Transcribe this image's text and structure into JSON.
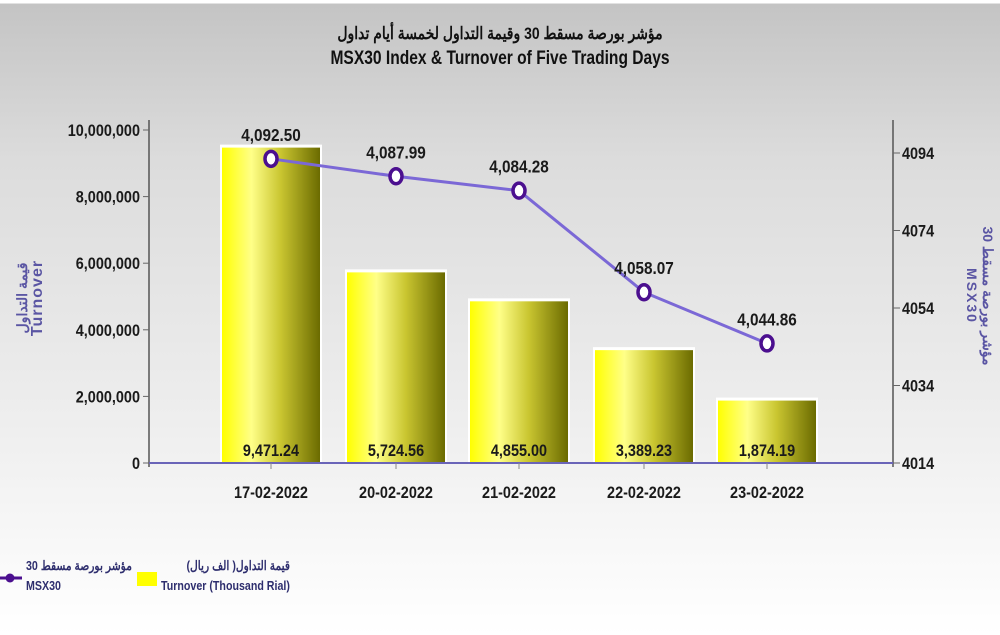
{
  "title": {
    "arabic": "مؤشر بورصة مسقط 30 وقيمة التداول لخمسة أيام تداول",
    "english": "MSX30 Index & Turnover of Five Trading Days"
  },
  "axes": {
    "left": {
      "title_arabic": "قيمة التداول",
      "title_english": "Turnover",
      "ticks": [
        "0",
        "2,000,000",
        "4,000,000",
        "6,000,000",
        "8,000,000",
        "10,000,000"
      ]
    },
    "right": {
      "title_arabic": "مؤشر بورصة مسقط 30",
      "title_english": "MSX30",
      "ticks": [
        "4014",
        "4034",
        "4054",
        "4074",
        "4094"
      ]
    }
  },
  "legend": {
    "line": {
      "arabic": "مؤشر بورصة مسقط 30",
      "english": "MSX30"
    },
    "bar": {
      "arabic": "قيمة التداول( الف ريال)",
      "english": "Turnover (Thousand Rial)"
    }
  },
  "colors": {
    "bar_light": "#ffff00",
    "bar_dark": "#6b6b00",
    "line": "#7b68d6",
    "marker": "#4b0f8f",
    "axis_title": "#5a55a3"
  },
  "chart_data": {
    "type": "bar",
    "title": "MSX30 Index & Turnover of Five Trading Days",
    "subtitle": "مؤشر بورصة مسقط 30 وقيمة التداول لخمسة أيام تداول",
    "categories": [
      "17-02-2022",
      "20-02-2022",
      "21-02-2022",
      "22-02-2022",
      "23-02-2022"
    ],
    "series": [
      {
        "name": "Turnover (Thousand Rial)",
        "type": "bar",
        "axis": "left",
        "values": [
          9471.24,
          5724.56,
          4855.0,
          3389.23,
          1874.19
        ],
        "labels": [
          "9,471.24",
          "5,724.56",
          "4,855.00",
          "3,389.23",
          "1,874.19"
        ]
      },
      {
        "name": "MSX30",
        "type": "line",
        "axis": "right",
        "values": [
          4092.5,
          4087.99,
          4084.28,
          4058.07,
          4044.86
        ],
        "labels": [
          "4,092.50",
          "4,087.99",
          "4,084.28",
          "4,058.07",
          "4,044.86"
        ]
      }
    ],
    "xlabel": "",
    "ylabel": "Turnover",
    "ylabel_right": "MSX30",
    "ylim": [
      0,
      10000000
    ],
    "ylim_right": [
      4014,
      4094
    ],
    "grid": false,
    "legend_position": "bottom-left"
  }
}
